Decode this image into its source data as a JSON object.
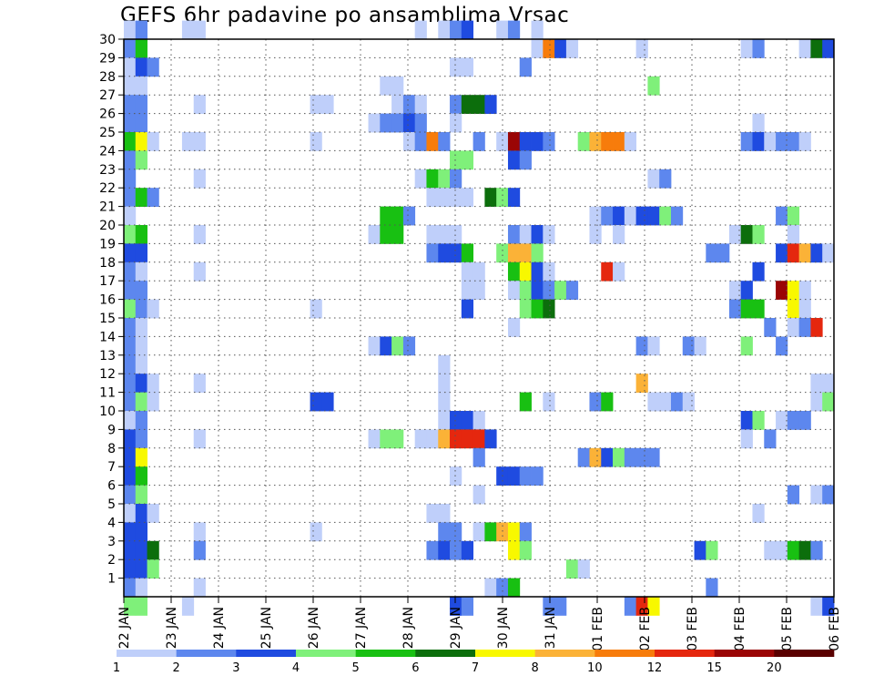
{
  "chart_data": {
    "type": "heatmap",
    "title": "GEFS 6hr padavine po ansamblima Vrsac",
    "xlabel": "",
    "ylabel": "",
    "x_ticks": [
      "22 JAN",
      "23 JAN",
      "24 JAN",
      "25 JAN",
      "26 JAN",
      "27 JAN",
      "28 JAN",
      "29 JAN",
      "30 JAN",
      "31 JAN",
      "01 FEB",
      "02 FEB",
      "03 FEB",
      "04 FEB",
      "05 FEB",
      "06 FEB"
    ],
    "y_ticks": [
      1,
      2,
      3,
      4,
      5,
      6,
      7,
      8,
      9,
      10,
      11,
      12,
      13,
      14,
      15,
      16,
      17,
      18,
      19,
      20,
      21,
      22,
      23,
      24,
      25,
      26,
      27,
      28,
      29,
      30
    ],
    "x_steps": 61,
    "y_rows": 30,
    "grid": true,
    "color_scale": {
      "ticks": [
        "1",
        "2",
        "3",
        "4",
        "5",
        "6",
        "7",
        "8",
        "10",
        "12",
        "15",
        "20"
      ],
      "colors": [
        "#bfcffa",
        "#5d87ee",
        "#1f4be0",
        "#7ff07a",
        "#18c012",
        "#0c6e0c",
        "#f8f800",
        "#fbb237",
        "#f77c0b",
        "#e5270e",
        "#9a0505",
        "#5a0000"
      ]
    },
    "cells": [
      [
        0,
        30,
        1
      ],
      [
        1,
        30,
        2
      ],
      [
        5,
        30,
        1
      ],
      [
        6,
        30,
        1
      ],
      [
        25,
        30,
        1
      ],
      [
        27,
        30,
        1
      ],
      [
        28,
        30,
        2
      ],
      [
        29,
        30,
        3
      ],
      [
        32,
        30,
        1
      ],
      [
        33,
        30,
        2
      ],
      [
        35,
        30,
        1
      ],
      [
        0,
        29,
        2
      ],
      [
        1,
        29,
        5
      ],
      [
        35,
        29,
        1
      ],
      [
        36,
        29,
        9
      ],
      [
        37,
        29,
        3
      ],
      [
        38,
        29,
        1
      ],
      [
        44,
        29,
        1
      ],
      [
        53,
        29,
        1
      ],
      [
        54,
        29,
        2
      ],
      [
        58,
        29,
        1
      ],
      [
        59,
        29,
        6
      ],
      [
        60,
        29,
        3
      ],
      [
        0,
        28,
        1
      ],
      [
        1,
        28,
        3
      ],
      [
        2,
        28,
        2
      ],
      [
        28,
        28,
        1
      ],
      [
        29,
        28,
        1
      ],
      [
        34,
        28,
        2
      ],
      [
        0,
        27,
        1
      ],
      [
        1,
        27,
        1
      ],
      [
        22,
        27,
        1
      ],
      [
        23,
        27,
        1
      ],
      [
        45,
        27,
        4
      ],
      [
        0,
        26,
        2
      ],
      [
        1,
        26,
        2
      ],
      [
        6,
        26,
        1
      ],
      [
        16,
        26,
        1
      ],
      [
        17,
        26,
        1
      ],
      [
        23,
        26,
        1
      ],
      [
        24,
        26,
        2
      ],
      [
        25,
        26,
        1
      ],
      [
        28,
        26,
        2
      ],
      [
        29,
        26,
        6
      ],
      [
        30,
        26,
        6
      ],
      [
        31,
        26,
        3
      ],
      [
        0,
        25,
        2
      ],
      [
        1,
        25,
        2
      ],
      [
        21,
        25,
        1
      ],
      [
        22,
        25,
        2
      ],
      [
        23,
        25,
        2
      ],
      [
        24,
        25,
        3
      ],
      [
        25,
        25,
        2
      ],
      [
        28,
        25,
        1
      ],
      [
        54,
        25,
        1
      ],
      [
        0,
        24,
        5
      ],
      [
        1,
        24,
        7
      ],
      [
        2,
        24,
        1
      ],
      [
        5,
        24,
        1
      ],
      [
        6,
        24,
        1
      ],
      [
        16,
        24,
        1
      ],
      [
        24,
        24,
        1
      ],
      [
        25,
        24,
        2
      ],
      [
        26,
        24,
        9
      ],
      [
        27,
        24,
        2
      ],
      [
        30,
        24,
        2
      ],
      [
        32,
        24,
        1
      ],
      [
        33,
        24,
        11
      ],
      [
        34,
        24,
        3
      ],
      [
        35,
        24,
        3
      ],
      [
        36,
        24,
        2
      ],
      [
        39,
        24,
        4
      ],
      [
        40,
        24,
        8
      ],
      [
        41,
        24,
        9
      ],
      [
        42,
        24,
        9
      ],
      [
        43,
        24,
        1
      ],
      [
        53,
        24,
        2
      ],
      [
        54,
        24,
        3
      ],
      [
        55,
        24,
        1
      ],
      [
        56,
        24,
        2
      ],
      [
        57,
        24,
        2
      ],
      [
        58,
        24,
        1
      ],
      [
        0,
        23,
        2
      ],
      [
        1,
        23,
        4
      ],
      [
        28,
        23,
        4
      ],
      [
        29,
        23,
        4
      ],
      [
        33,
        23,
        3
      ],
      [
        34,
        23,
        2
      ],
      [
        0,
        22,
        2
      ],
      [
        6,
        22,
        1
      ],
      [
        25,
        22,
        1
      ],
      [
        26,
        22,
        5
      ],
      [
        27,
        22,
        4
      ],
      [
        28,
        22,
        2
      ],
      [
        45,
        22,
        1
      ],
      [
        46,
        22,
        2
      ],
      [
        0,
        21,
        2
      ],
      [
        1,
        21,
        5
      ],
      [
        2,
        21,
        2
      ],
      [
        26,
        21,
        1
      ],
      [
        27,
        21,
        1
      ],
      [
        28,
        21,
        1
      ],
      [
        29,
        21,
        1
      ],
      [
        31,
        21,
        6
      ],
      [
        32,
        21,
        4
      ],
      [
        33,
        21,
        3
      ],
      [
        0,
        20,
        1
      ],
      [
        22,
        20,
        5
      ],
      [
        23,
        20,
        5
      ],
      [
        24,
        20,
        2
      ],
      [
        40,
        20,
        1
      ],
      [
        41,
        20,
        2
      ],
      [
        42,
        20,
        3
      ],
      [
        43,
        20,
        1
      ],
      [
        44,
        20,
        3
      ],
      [
        45,
        20,
        3
      ],
      [
        46,
        20,
        4
      ],
      [
        47,
        20,
        2
      ],
      [
        56,
        20,
        2
      ],
      [
        57,
        20,
        4
      ],
      [
        0,
        19,
        4
      ],
      [
        1,
        19,
        5
      ],
      [
        6,
        19,
        1
      ],
      [
        21,
        19,
        1
      ],
      [
        22,
        19,
        5
      ],
      [
        23,
        19,
        5
      ],
      [
        26,
        19,
        1
      ],
      [
        27,
        19,
        1
      ],
      [
        28,
        19,
        1
      ],
      [
        33,
        19,
        2
      ],
      [
        34,
        19,
        1
      ],
      [
        35,
        19,
        3
      ],
      [
        36,
        19,
        1
      ],
      [
        40,
        19,
        1
      ],
      [
        42,
        19,
        1
      ],
      [
        52,
        19,
        1
      ],
      [
        53,
        19,
        6
      ],
      [
        54,
        19,
        4
      ],
      [
        57,
        19,
        1
      ],
      [
        0,
        18,
        3
      ],
      [
        1,
        18,
        3
      ],
      [
        26,
        18,
        2
      ],
      [
        27,
        18,
        3
      ],
      [
        28,
        18,
        3
      ],
      [
        29,
        18,
        5
      ],
      [
        32,
        18,
        4
      ],
      [
        33,
        18,
        8
      ],
      [
        34,
        18,
        8
      ],
      [
        35,
        18,
        4
      ],
      [
        50,
        18,
        2
      ],
      [
        51,
        18,
        2
      ],
      [
        56,
        18,
        3
      ],
      [
        57,
        18,
        10
      ],
      [
        58,
        18,
        8
      ],
      [
        59,
        18,
        3
      ],
      [
        60,
        18,
        1
      ],
      [
        0,
        17,
        2
      ],
      [
        1,
        17,
        1
      ],
      [
        6,
        17,
        1
      ],
      [
        29,
        17,
        1
      ],
      [
        30,
        17,
        1
      ],
      [
        33,
        17,
        5
      ],
      [
        34,
        17,
        7
      ],
      [
        35,
        17,
        3
      ],
      [
        36,
        17,
        1
      ],
      [
        41,
        17,
        10
      ],
      [
        42,
        17,
        1
      ],
      [
        54,
        17,
        3
      ],
      [
        0,
        16,
        2
      ],
      [
        1,
        16,
        2
      ],
      [
        29,
        16,
        1
      ],
      [
        30,
        16,
        1
      ],
      [
        33,
        16,
        1
      ],
      [
        34,
        16,
        4
      ],
      [
        35,
        16,
        3
      ],
      [
        36,
        16,
        2
      ],
      [
        37,
        16,
        4
      ],
      [
        38,
        16,
        2
      ],
      [
        52,
        16,
        1
      ],
      [
        53,
        16,
        3
      ],
      [
        56,
        16,
        11
      ],
      [
        57,
        16,
        7
      ],
      [
        58,
        16,
        1
      ],
      [
        0,
        15,
        4
      ],
      [
        1,
        15,
        2
      ],
      [
        2,
        15,
        1
      ],
      [
        16,
        15,
        1
      ],
      [
        29,
        15,
        3
      ],
      [
        34,
        15,
        4
      ],
      [
        35,
        15,
        5
      ],
      [
        36,
        15,
        6
      ],
      [
        52,
        15,
        2
      ],
      [
        53,
        15,
        5
      ],
      [
        54,
        15,
        5
      ],
      [
        57,
        15,
        7
      ],
      [
        58,
        15,
        1
      ],
      [
        0,
        14,
        2
      ],
      [
        1,
        14,
        1
      ],
      [
        33,
        14,
        1
      ],
      [
        55,
        14,
        2
      ],
      [
        57,
        14,
        1
      ],
      [
        58,
        14,
        2
      ],
      [
        59,
        14,
        10
      ],
      [
        0,
        13,
        2
      ],
      [
        1,
        13,
        1
      ],
      [
        21,
        13,
        1
      ],
      [
        22,
        13,
        3
      ],
      [
        23,
        13,
        4
      ],
      [
        24,
        13,
        2
      ],
      [
        44,
        13,
        2
      ],
      [
        45,
        13,
        1
      ],
      [
        48,
        13,
        2
      ],
      [
        49,
        13,
        1
      ],
      [
        53,
        13,
        4
      ],
      [
        56,
        13,
        2
      ],
      [
        0,
        12,
        2
      ],
      [
        1,
        12,
        1
      ],
      [
        27,
        12,
        1
      ],
      [
        0,
        11,
        2
      ],
      [
        1,
        11,
        3
      ],
      [
        2,
        11,
        1
      ],
      [
        6,
        11,
        1
      ],
      [
        27,
        11,
        1
      ],
      [
        44,
        11,
        8
      ],
      [
        59,
        11,
        1
      ],
      [
        60,
        11,
        1
      ],
      [
        0,
        10,
        2
      ],
      [
        1,
        10,
        4
      ],
      [
        2,
        10,
        1
      ],
      [
        16,
        10,
        3
      ],
      [
        17,
        10,
        3
      ],
      [
        27,
        10,
        1
      ],
      [
        34,
        10,
        5
      ],
      [
        36,
        10,
        1
      ],
      [
        40,
        10,
        2
      ],
      [
        41,
        10,
        5
      ],
      [
        45,
        10,
        1
      ],
      [
        46,
        10,
        1
      ],
      [
        47,
        10,
        2
      ],
      [
        48,
        10,
        1
      ],
      [
        59,
        10,
        1
      ],
      [
        60,
        10,
        4
      ],
      [
        0,
        9,
        1
      ],
      [
        1,
        9,
        2
      ],
      [
        27,
        9,
        1
      ],
      [
        28,
        9,
        3
      ],
      [
        29,
        9,
        3
      ],
      [
        30,
        9,
        1
      ],
      [
        53,
        9,
        3
      ],
      [
        54,
        9,
        4
      ],
      [
        56,
        9,
        1
      ],
      [
        57,
        9,
        2
      ],
      [
        58,
        9,
        2
      ],
      [
        0,
        8,
        3
      ],
      [
        1,
        8,
        2
      ],
      [
        6,
        8,
        1
      ],
      [
        21,
        8,
        1
      ],
      [
        22,
        8,
        4
      ],
      [
        23,
        8,
        4
      ],
      [
        25,
        8,
        1
      ],
      [
        26,
        8,
        1
      ],
      [
        27,
        8,
        8
      ],
      [
        28,
        8,
        10
      ],
      [
        29,
        8,
        10
      ],
      [
        30,
        8,
        10
      ],
      [
        31,
        8,
        3
      ],
      [
        53,
        8,
        1
      ],
      [
        55,
        8,
        2
      ],
      [
        0,
        7,
        3
      ],
      [
        1,
        7,
        7
      ],
      [
        30,
        7,
        2
      ],
      [
        39,
        7,
        2
      ],
      [
        40,
        7,
        8
      ],
      [
        41,
        7,
        3
      ],
      [
        42,
        7,
        4
      ],
      [
        43,
        7,
        2
      ],
      [
        44,
        7,
        2
      ],
      [
        45,
        7,
        2
      ],
      [
        0,
        6,
        3
      ],
      [
        1,
        6,
        5
      ],
      [
        28,
        6,
        1
      ],
      [
        32,
        6,
        3
      ],
      [
        33,
        6,
        3
      ],
      [
        34,
        6,
        2
      ],
      [
        35,
        6,
        2
      ],
      [
        0,
        5,
        2
      ],
      [
        1,
        5,
        4
      ],
      [
        30,
        5,
        1
      ],
      [
        57,
        5,
        2
      ],
      [
        59,
        5,
        1
      ],
      [
        60,
        5,
        2
      ],
      [
        0,
        4,
        1
      ],
      [
        1,
        4,
        3
      ],
      [
        2,
        4,
        1
      ],
      [
        26,
        4,
        1
      ],
      [
        27,
        4,
        1
      ],
      [
        54,
        4,
        1
      ],
      [
        0,
        3,
        3
      ],
      [
        1,
        3,
        3
      ],
      [
        6,
        3,
        1
      ],
      [
        16,
        3,
        1
      ],
      [
        27,
        3,
        2
      ],
      [
        28,
        3,
        2
      ],
      [
        30,
        3,
        1
      ],
      [
        31,
        3,
        5
      ],
      [
        32,
        3,
        8
      ],
      [
        33,
        3,
        7
      ],
      [
        34,
        3,
        2
      ],
      [
        0,
        2,
        3
      ],
      [
        1,
        2,
        3
      ],
      [
        2,
        2,
        6
      ],
      [
        6,
        2,
        2
      ],
      [
        26,
        2,
        2
      ],
      [
        27,
        2,
        3
      ],
      [
        28,
        2,
        2
      ],
      [
        29,
        2,
        3
      ],
      [
        33,
        2,
        7
      ],
      [
        34,
        2,
        4
      ],
      [
        49,
        2,
        3
      ],
      [
        50,
        2,
        4
      ],
      [
        55,
        2,
        1
      ],
      [
        56,
        2,
        1
      ],
      [
        57,
        2,
        5
      ],
      [
        58,
        2,
        6
      ],
      [
        59,
        2,
        2
      ],
      [
        0,
        1,
        3
      ],
      [
        1,
        1,
        3
      ],
      [
        2,
        1,
        4
      ],
      [
        38,
        1,
        4
      ],
      [
        39,
        1,
        1
      ],
      [
        0,
        0,
        2
      ],
      [
        1,
        0,
        1
      ],
      [
        6,
        0,
        1
      ],
      [
        31,
        0,
        1
      ],
      [
        32,
        0,
        2
      ],
      [
        33,
        0,
        5
      ],
      [
        50,
        0,
        2
      ],
      [
        0,
        -1,
        4
      ],
      [
        1,
        -1,
        4
      ],
      [
        5,
        -1,
        1
      ],
      [
        28,
        -1,
        3
      ],
      [
        29,
        -1,
        2
      ],
      [
        36,
        -1,
        2
      ],
      [
        37,
        -1,
        2
      ],
      [
        43,
        -1,
        2
      ],
      [
        44,
        -1,
        10
      ],
      [
        45,
        -1,
        7
      ],
      [
        59,
        -1,
        1
      ],
      [
        60,
        -1,
        3
      ]
    ]
  }
}
